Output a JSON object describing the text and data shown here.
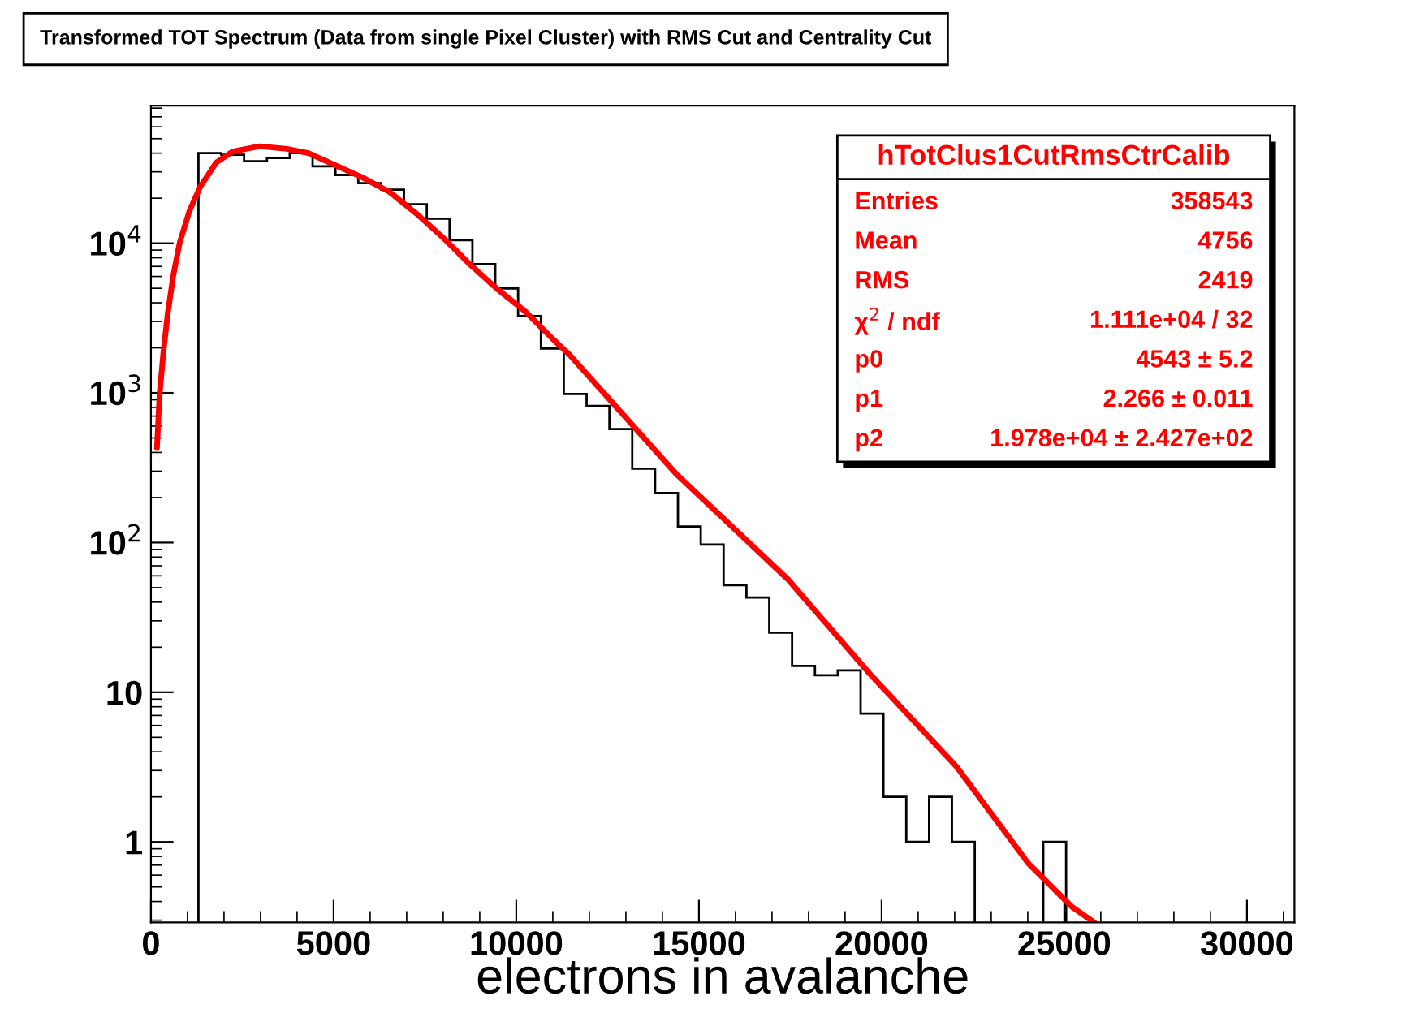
{
  "chart_data": {
    "type": "histogram",
    "title": "Transformed TOT Spectrum (Data from single Pixel Cluster) with RMS Cut and Centrality Cut",
    "xlabel": "electrons in avalanche",
    "color": "#000000",
    "bins": [
      1300,
      1925,
      2550,
      3175,
      3800,
      4425,
      5050,
      5675,
      6300,
      6925,
      7550,
      8175,
      8800,
      9425,
      10050,
      10675,
      11300,
      11925,
      12550,
      13175,
      13800,
      14425,
      15050,
      15675,
      16300,
      16925,
      17550,
      18175,
      18800,
      19425,
      20050,
      20675,
      21300,
      21925,
      22550
    ],
    "values": [
      40000,
      39000,
      35300,
      37100,
      40000,
      32700,
      28600,
      25200,
      22800,
      18200,
      14600,
      10500,
      7250,
      4980,
      3260,
      1980,
      983,
      819,
      573,
      312,
      214,
      128,
      97,
      52,
      43,
      25,
      15,
      13,
      14,
      7.2,
      2,
      1,
      2,
      1
    ],
    "series": [
      {
        "type": "histogram",
        "color": "#000000",
        "bins": [
          24425,
          25050
        ],
        "values": [
          1
        ]
      },
      {
        "type": "line",
        "color": "#ff0000",
        "x": [
          164,
          236,
          342,
          458,
          609,
          787,
          1053,
          1347,
          1791,
          2236,
          2978,
          3720,
          4311,
          5053,
          5791,
          6533,
          7276,
          8013,
          8756,
          9498,
          10236,
          10978,
          11458,
          14364,
          17440,
          19662,
          22053,
          24013,
          25200,
          25820
        ],
        "values": [
          428,
          968,
          1880,
          3370,
          6040,
          10100,
          16400,
          23800,
          34700,
          41000,
          44500,
          42700,
          40000,
          33200,
          27500,
          22000,
          15700,
          10800,
          7130,
          4900,
          3520,
          2320,
          1800,
          290,
          56.7,
          13.4,
          3.18,
          0.72,
          0.37,
          0.29
        ]
      }
    ],
    "log": "y",
    "xlim": [
      0,
      31300
    ],
    "ylim": [
      0.29,
      83000
    ],
    "xticks": [
      0,
      5000,
      10000,
      15000,
      20000,
      25000,
      30000
    ],
    "yticks": [
      1,
      10,
      {
        "value": 100,
        "label": "10$^{2}$"
      },
      {
        "value": 1000,
        "label": "10$^{3}$"
      },
      {
        "value": 10000,
        "label": "10$^{4}$"
      }
    ],
    "annotations": [
      "hTotClus1CutRmsCtrCalib",
      "Entries",
      "358543",
      "Mean",
      "4756",
      "RMS",
      "2419",
      "χ$^{2}$ / ndf",
      "1.111e+04 / 32",
      "p0",
      "4543 ± 5.2",
      "p1",
      "2.266 ± 0.011",
      "p2",
      "1.978e+04 ± 2.427e+02"
    ]
  }
}
